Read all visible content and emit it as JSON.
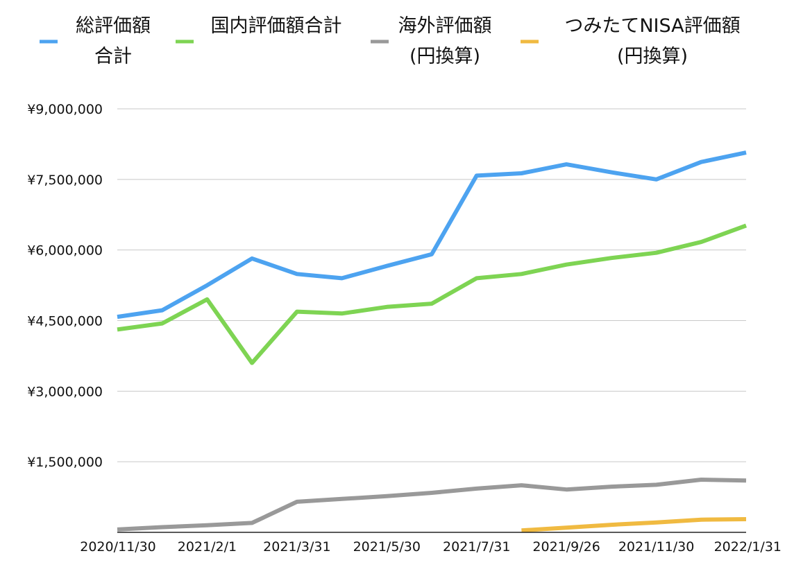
{
  "chart_data": {
    "type": "line",
    "title": "",
    "xlabel": "",
    "ylabel": "",
    "ylim": [
      0,
      9000000
    ],
    "y_ticks": [
      {
        "value": 1500000,
        "label": "¥1,500,000"
      },
      {
        "value": 3000000,
        "label": "¥3,000,000"
      },
      {
        "value": 4500000,
        "label": "¥4,500,000"
      },
      {
        "value": 6000000,
        "label": "¥6,000,000"
      },
      {
        "value": 7500000,
        "label": "¥7,500,000"
      },
      {
        "value": 9000000,
        "label": "¥9,000,000"
      }
    ],
    "categories": [
      "2020/11/30",
      "",
      "2021/2/1",
      "",
      "2021/3/31",
      "",
      "2021/5/30",
      "",
      "2021/7/31",
      "",
      "2021/9/26",
      "",
      "2021/11/30",
      "",
      "2022/1/31"
    ],
    "grid": true,
    "legend_position": "top",
    "series": [
      {
        "name": "総評価額合計",
        "legend_lines": [
          "総評価額",
          "合計"
        ],
        "color": "#4DA3F0",
        "values": [
          4580000,
          4720000,
          5250000,
          5820000,
          5490000,
          5400000,
          5660000,
          5910000,
          7580000,
          7630000,
          7820000,
          7650000,
          7500000,
          7870000,
          8070000
        ]
      },
      {
        "name": "国内評価額合計",
        "legend_lines": [
          "国内評価額合計"
        ],
        "color": "#7ED453",
        "values": [
          4310000,
          4440000,
          4950000,
          3600000,
          4690000,
          4650000,
          4790000,
          4860000,
          5400000,
          5490000,
          5690000,
          5830000,
          5940000,
          6170000,
          6520000
        ]
      },
      {
        "name": "海外評価額(円換算)",
        "legend_lines": [
          "海外評価額",
          "(円換算)"
        ],
        "color": "#999999",
        "values": [
          60000,
          110000,
          150000,
          200000,
          650000,
          710000,
          770000,
          840000,
          930000,
          1000000,
          910000,
          970000,
          1010000,
          1120000,
          1100000
        ]
      },
      {
        "name": "つみたてNISA評価額(円換算)",
        "legend_lines": [
          "つみたてNISA評価額",
          "(円換算)"
        ],
        "color": "#F0BA41",
        "values": [
          null,
          null,
          null,
          null,
          null,
          null,
          null,
          null,
          null,
          40000,
          100000,
          160000,
          210000,
          270000,
          280000
        ]
      }
    ]
  }
}
